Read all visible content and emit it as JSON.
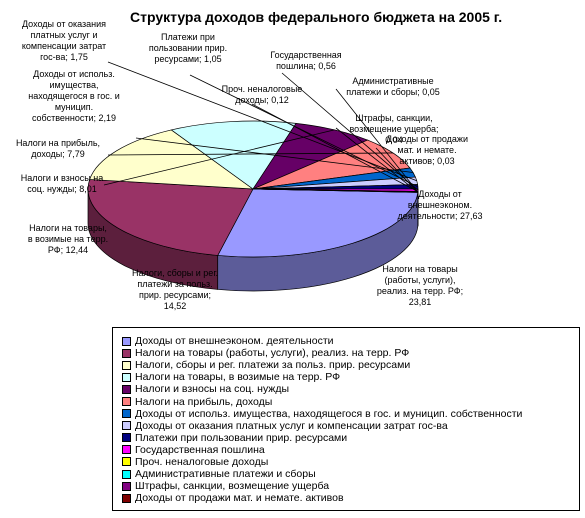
{
  "chart_data": {
    "type": "pie",
    "title": "Структура доходов федерального бюджета на 2005 г.",
    "legend_position": "bottom",
    "slices": [
      {
        "name": "Доходы от внешнеэконом. деятельности",
        "label_lines": [
          "Доходы от",
          "внешнеэконом.",
          "деятельности; 27,63"
        ],
        "value": 27.63,
        "color": "#9999FF"
      },
      {
        "name": "Налоги на товары (работы, услуги), реализ. на терр. РФ",
        "label_lines": [
          "Налоги на товары",
          "(работы, услуги),",
          "реализ. на терр. РФ;",
          "23,81"
        ],
        "value": 23.81,
        "color": "#993366"
      },
      {
        "name": "Налоги, сборы и рег. платежи за польз. прир. ресурсами",
        "label_lines": [
          "Налоги, сборы и рег.",
          "платежи за польз.",
          "прир. ресурсами;",
          "14,52"
        ],
        "value": 14.52,
        "color": "#FFFFCC"
      },
      {
        "name": "Налоги на товары, в возимые на терр. РФ",
        "label_lines": [
          "Налоги на товары,",
          "в возимые на терр.",
          "РФ; 12,44"
        ],
        "value": 12.44,
        "color": "#CCFFFF"
      },
      {
        "name": "Налоги и взносы на соц. нужды",
        "label_lines": [
          "Налоги и взносы на",
          "соц. нужды; 8,01"
        ],
        "value": 8.01,
        "color": "#660066"
      },
      {
        "name": "Налоги на прибыль, доходы",
        "label_lines": [
          "Налоги на прибыль,",
          "доходы; 7,79"
        ],
        "value": 7.79,
        "color": "#FF8080"
      },
      {
        "name": "Доходы от использ. имущества, находящегося в гос. и муницип. собственности",
        "label_lines": [
          "Доходы от использ.",
          "имущества,",
          "находящегося в гос. и",
          "муницип.",
          "собственности; 2,19"
        ],
        "value": 2.19,
        "color": "#0066CC"
      },
      {
        "name": "Доходы от оказания платных услуг и компенсации затрат гос-ва",
        "label_lines": [
          "Доходы от оказания",
          "платных услуг и",
          "компенсации затрат",
          "гос-ва; 1,75"
        ],
        "value": 1.75,
        "color": "#CCCCFF"
      },
      {
        "name": "Платежи при пользовании прир. ресурсами",
        "label_lines": [
          "Платежи при",
          "пользовании прир.",
          "ресурсами; 1,05"
        ],
        "value": 1.05,
        "color": "#000080"
      },
      {
        "name": "Государственная пошлина",
        "label_lines": [
          "Государственная",
          "пошлина; 0,56"
        ],
        "value": 0.56,
        "color": "#FF00FF"
      },
      {
        "name": "Проч. неналоговые доходы",
        "label_lines": [
          "Проч. неналоговые",
          "доходы; 0,12"
        ],
        "value": 0.12,
        "color": "#FFFF00"
      },
      {
        "name": "Административные платежи и сборы",
        "label_lines": [
          "Административные",
          "платежи и сборы; 0,05"
        ],
        "value": 0.05,
        "color": "#00FFFF"
      },
      {
        "name": "Штрафы, санкции, возмещение ущерба",
        "label_lines": [
          "Штрафы, санкции,",
          "возмещение ущерба;",
          "0,04"
        ],
        "value": 0.04,
        "color": "#800080"
      },
      {
        "name": "Доходы от продажи мат. и немате. активов",
        "label_lines": [
          "Доходы от продажи",
          "мат. и немате.",
          "активов; 0,03"
        ],
        "value": 0.03,
        "color": "#800000"
      }
    ]
  }
}
